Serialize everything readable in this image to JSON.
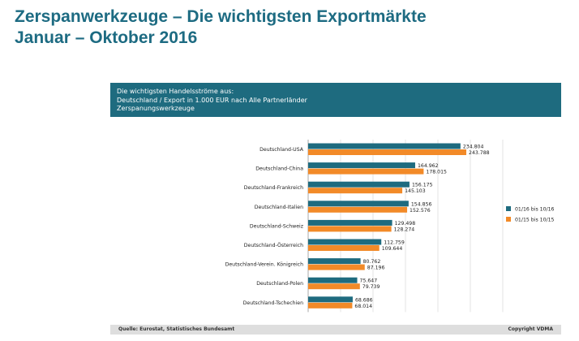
{
  "page": {
    "title_line1": "Zerspanwerkzeuge – Die wichtigsten Exportmärkte",
    "title_line2": "Januar – Oktober 2016"
  },
  "panel": {
    "header_line1": "Die wichtigsten Handelsströme aus:",
    "header_line2": "Deutschland / Export in 1.000 EUR nach Alle Partnerländer",
    "header_line3": "Zerspanungswerkzeuge"
  },
  "footer": {
    "source": "Quelle: Eurostat, Statistisches Bundesamt",
    "copyright": "Copyright VDMA"
  },
  "colors": {
    "series_2016": "#1e6b7f",
    "series_2015": "#f28a28",
    "title": "#1d6b82",
    "header_bg": "#1e6b7f"
  },
  "chart_data": {
    "type": "bar",
    "orientation": "horizontal",
    "categories": [
      "Deutschland-USA",
      "Deutschland-China",
      "Deutschland-Frankreich",
      "Deutschland-Italien",
      "Deutschland-Schweiz",
      "Deutschland-Österreich",
      "Deutschland-Verein. Königreich",
      "Deutschland-Polen",
      "Deutschland-Tschechien"
    ],
    "series": [
      {
        "name": "01/16 bis 10/16",
        "values": [
          234804,
          164962,
          156175,
          154856,
          129498,
          112759,
          80762,
          75647,
          68686
        ],
        "labels": [
          "234.804",
          "164.962",
          "156.175",
          "154.856",
          "129.498",
          "112.759",
          "80.762",
          "75.647",
          "68.686"
        ]
      },
      {
        "name": "01/15 bis 10/15",
        "values": [
          243788,
          178015,
          145103,
          152576,
          128274,
          109644,
          87196,
          79739,
          68014
        ],
        "labels": [
          "243.788",
          "178.015",
          "145.103",
          "152.576",
          "128.274",
          "109.644",
          "87.196",
          "79.739",
          "68.014"
        ]
      }
    ],
    "xlim": [
      0,
      300000
    ],
    "grid": true,
    "legend": "right"
  }
}
